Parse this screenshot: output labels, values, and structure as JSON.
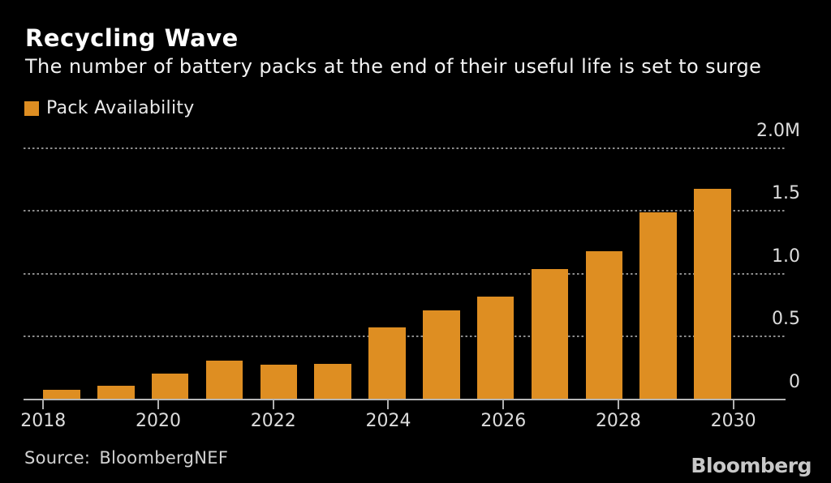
{
  "header": {
    "title": "Recycling Wave",
    "subtitle": "The number of battery packs at the end of their useful life is set to surge"
  },
  "legend": {
    "label": "Pack Availability",
    "swatch_color": "#DE8E22"
  },
  "chart_data": {
    "type": "bar",
    "title": "Recycling Wave",
    "subtitle": "The number of battery packs at the end of their useful life is set to surge",
    "series_name": "Pack Availability",
    "categories": [
      2018,
      2019,
      2020,
      2021,
      2022,
      2023,
      2024,
      2025,
      2026,
      2027,
      2028,
      2029,
      2030
    ],
    "values": [
      0.07,
      0.1,
      0.2,
      0.3,
      0.27,
      0.28,
      0.57,
      0.7,
      0.81,
      1.03,
      1.17,
      1.48,
      1.67
    ],
    "unit": "millions of battery packs",
    "ylim": [
      0,
      2.0
    ],
    "yticks": [
      {
        "label": "2.0M",
        "value": 2.0
      },
      {
        "label": "1.5",
        "value": 1.5
      },
      {
        "label": "1.0",
        "value": 1.0
      },
      {
        "label": "0.5",
        "value": 0.5
      },
      {
        "label": "0",
        "value": 0
      }
    ],
    "xticks": [
      "2018",
      "2020",
      "2022",
      "2024",
      "2026",
      "2028",
      "2030"
    ],
    "grid": "horizontal-dotted",
    "legend_position": "top-left",
    "y_axis_side": "right",
    "colors": {
      "bar": "#DE8E22",
      "background": "#000000",
      "gridline": "#8D8D8D",
      "axis": "#B5B5B5",
      "title_text": "#FFFFFF",
      "tick_text": "#DCDCDC"
    }
  },
  "footer": {
    "source_label": "Source:",
    "source_value": "BloombergNEF",
    "logo": "Bloomberg"
  }
}
